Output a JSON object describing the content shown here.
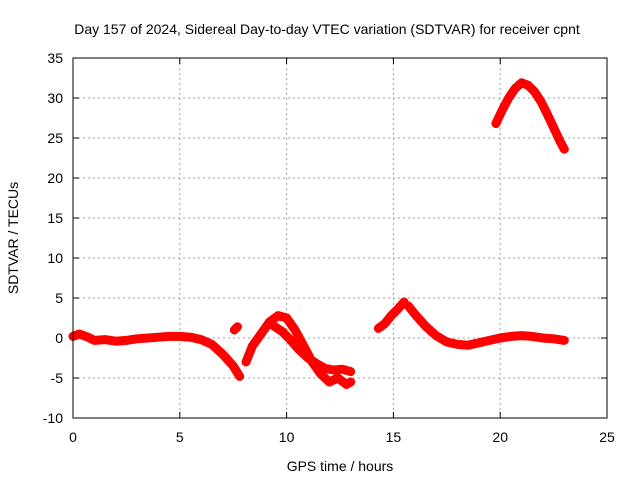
{
  "chart_data": {
    "type": "line",
    "title": "Day 157 of 2024, Sidereal Day-to-day VTEC variation (SDTVAR) for receiver cpnt",
    "xlabel": "GPS time / hours",
    "ylabel": "SDTVAR / TECUs",
    "xlim": [
      0,
      25
    ],
    "ylim": [
      -10,
      35
    ],
    "xticks": [
      0,
      5,
      10,
      15,
      20,
      25
    ],
    "yticks": [
      -10,
      -5,
      0,
      5,
      10,
      15,
      20,
      25,
      30,
      35
    ],
    "grid": true,
    "series_color": "#ff0000",
    "series": [
      {
        "name": "segment-1",
        "x": [
          0,
          0.3,
          0.7,
          1.0,
          1.5,
          2.0,
          2.5,
          3.0,
          3.5,
          4.0,
          4.5,
          5.0,
          5.5,
          6.0,
          6.5,
          7.0,
          7.5,
          7.8
        ],
        "values": [
          0.2,
          0.5,
          0.1,
          -0.3,
          -0.2,
          -0.4,
          -0.3,
          -0.1,
          0,
          0.1,
          0.2,
          0.2,
          0.1,
          -0.2,
          -0.8,
          -2.0,
          -3.5,
          -4.8
        ]
      },
      {
        "name": "segment-2",
        "x": [
          7.55,
          7.7
        ],
        "values": [
          1.0,
          1.4
        ]
      },
      {
        "name": "segment-3",
        "x": [
          8.1,
          8.4,
          8.8,
          9.2,
          9.6,
          10.0,
          10.4,
          10.8,
          11.2,
          11.6,
          12.0,
          12.4,
          12.8,
          13.0
        ],
        "values": [
          -3.0,
          -1.0,
          0.5,
          2.0,
          2.8,
          2.5,
          1.0,
          -1.0,
          -3.0,
          -4.5,
          -5.5,
          -5.0,
          -5.8,
          -5.5
        ]
      },
      {
        "name": "segment-4",
        "x": [
          9.4,
          9.8,
          10.2,
          10.6,
          11.0,
          11.4,
          11.8,
          12.2,
          12.6,
          13.0
        ],
        "values": [
          1.5,
          0.8,
          -0.3,
          -1.5,
          -2.5,
          -3.2,
          -3.8,
          -4.0,
          -3.9,
          -4.2
        ]
      },
      {
        "name": "segment-5",
        "x": [
          14.3,
          14.6,
          14.9,
          15.2,
          15.5
        ],
        "values": [
          1.2,
          1.8,
          2.8,
          3.6,
          4.5
        ]
      },
      {
        "name": "segment-6",
        "x": [
          15.7,
          16.0,
          16.5,
          17.0,
          17.5,
          18.0,
          18.5,
          19.0,
          19.5,
          20.0,
          20.5,
          21.0,
          21.5,
          22.0,
          22.5,
          23.0
        ],
        "values": [
          4.0,
          3.0,
          1.5,
          0.3,
          -0.5,
          -0.8,
          -0.9,
          -0.6,
          -0.3,
          0,
          0.2,
          0.3,
          0.2,
          0,
          -0.1,
          -0.3
        ]
      },
      {
        "name": "segment-7",
        "x": [
          19.8,
          20.1,
          20.4,
          20.7,
          21.0,
          21.3,
          21.6,
          21.9,
          22.2,
          22.5,
          22.8,
          23.0
        ],
        "values": [
          26.8,
          28.5,
          30.0,
          31.2,
          31.9,
          31.6,
          30.8,
          29.6,
          28.0,
          26.3,
          24.6,
          23.6
        ]
      }
    ]
  }
}
